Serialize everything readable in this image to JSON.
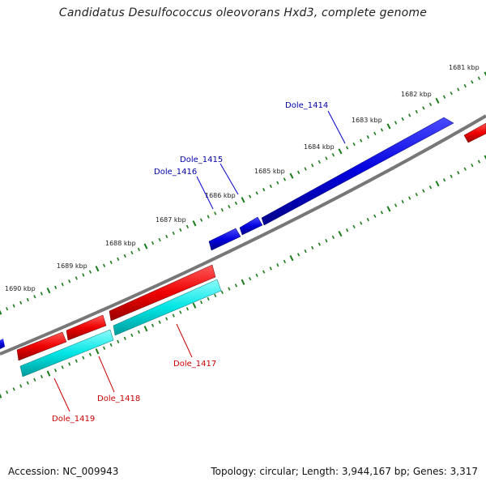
{
  "title": "Candidatus Desulfococcus oleovorans Hxd3, complete genome",
  "footer": {
    "accession": "Accession: NC_009943",
    "summary": "Topology: circular; Length: 3,944,167 bp; Genes: 3,317"
  },
  "colors": {
    "backbone": "#777777",
    "tick": "#1a7a1a",
    "forward_gene": "#0000dd",
    "reverse_gene": "#ee0000",
    "cds_track": "#00e5e5",
    "forward_label": "#0000aa",
    "reverse_label": "#cc0000"
  },
  "scale_ticks": [
    "1681 kbp",
    "1682 kbp",
    "1683 kbp",
    "1684 kbp",
    "1685 kbp",
    "1686 kbp",
    "1687 kbp",
    "1688 kbp",
    "1689 kbp",
    "1690 kbp"
  ],
  "genes_forward": [
    {
      "name": "Dole_1414"
    },
    {
      "name": "Dole_1415"
    },
    {
      "name": "Dole_1416"
    }
  ],
  "genes_reverse": [
    {
      "name": "Dole_1417"
    },
    {
      "name": "Dole_1418"
    },
    {
      "name": "Dole_1419"
    }
  ]
}
